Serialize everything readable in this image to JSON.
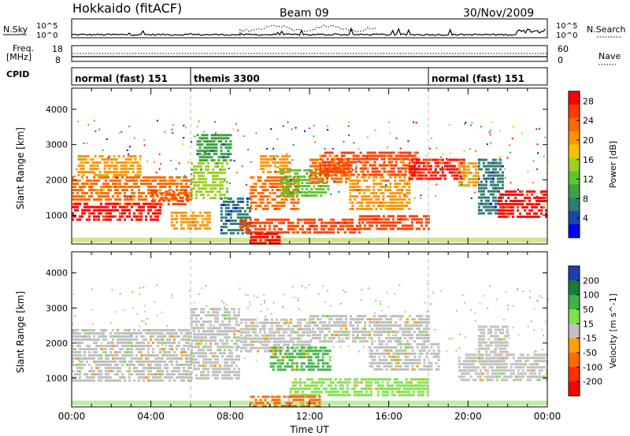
{
  "header": {
    "site": "Hokkaido (fitACF)",
    "beam": "Beam 09",
    "date": "30/Nov/2009"
  },
  "noise_panel": {
    "left_label": "N.Sky",
    "right_label": "N.Search",
    "tick_top": "10^5",
    "tick_bottom": "10^0"
  },
  "freq_panel": {
    "left_label_line1": "Freq.",
    "left_label_line2": "[MHz]",
    "left_tick_top": "18",
    "left_tick_bottom": "8",
    "right_label": "Nave",
    "right_tick_top": "60",
    "right_tick_bottom": "0"
  },
  "cpid": {
    "label": "CPID",
    "segments": [
      {
        "name": "normal (fast) 151",
        "start_hour": 0,
        "end_hour": 6
      },
      {
        "name": "themis 3300",
        "start_hour": 6,
        "end_hour": 18
      },
      {
        "name": "normal (fast) 151",
        "start_hour": 18,
        "end_hour": 24
      }
    ]
  },
  "chart_data": [
    {
      "type": "heatmap",
      "name": "power",
      "ylabel": "Slant Range [km]",
      "xlabel": "",
      "xlim": [
        0,
        24
      ],
      "ylim": [
        180,
        4600
      ],
      "yticks": [
        1000,
        2000,
        3000,
        4000
      ],
      "colorbar": {
        "label": "Power [dB]",
        "ticks": [
          4,
          8,
          12,
          16,
          20,
          24,
          28
        ],
        "range": [
          0,
          30
        ],
        "colors": [
          "#0000ff",
          "#1a47a8",
          "#2e7d6e",
          "#3fa145",
          "#62c234",
          "#9ed022",
          "#ffc000",
          "#ff9400",
          "#ff6a00",
          "#ff3d00",
          "#ff0000"
        ]
      },
      "regions": [
        {
          "h0": 0.0,
          "h1": 4.5,
          "r0": 900,
          "r1": 1350,
          "level": 30
        },
        {
          "h0": 0.0,
          "h1": 6.0,
          "r0": 1400,
          "r1": 2100,
          "level": 24
        },
        {
          "h0": 0.3,
          "h1": 3.5,
          "r0": 2100,
          "r1": 2700,
          "level": 20
        },
        {
          "h0": 4.0,
          "h1": 5.8,
          "r0": 1300,
          "r1": 1700,
          "level": 26
        },
        {
          "h0": 5.0,
          "h1": 7.0,
          "r0": 600,
          "r1": 1100,
          "level": 22
        },
        {
          "h0": 6.0,
          "h1": 7.8,
          "r0": 1500,
          "r1": 2500,
          "level": 14
        },
        {
          "h0": 6.3,
          "h1": 8.0,
          "r0": 2500,
          "r1": 3300,
          "level": 8
        },
        {
          "h0": 7.5,
          "h1": 9.0,
          "r0": 500,
          "r1": 1500,
          "level": 6
        },
        {
          "h0": 8.5,
          "h1": 14.5,
          "r0": 500,
          "r1": 900,
          "level": 28
        },
        {
          "h0": 9.0,
          "h1": 10.5,
          "r0": 200,
          "r1": 500,
          "level": 30
        },
        {
          "h0": 9.0,
          "h1": 11.5,
          "r0": 1200,
          "r1": 2100,
          "level": 24
        },
        {
          "h0": 9.5,
          "h1": 11.0,
          "r0": 2200,
          "r1": 2700,
          "level": 22
        },
        {
          "h0": 10.5,
          "h1": 13.0,
          "r0": 1500,
          "r1": 2300,
          "level": 13
        },
        {
          "h0": 12.0,
          "h1": 14.0,
          "r0": 1900,
          "r1": 2600,
          "level": 24
        },
        {
          "h0": 12.5,
          "h1": 17.5,
          "r0": 2100,
          "r1": 2800,
          "level": 26
        },
        {
          "h0": 14.0,
          "h1": 17.0,
          "r0": 1200,
          "r1": 2100,
          "level": 22
        },
        {
          "h0": 14.5,
          "h1": 18.0,
          "r0": 600,
          "r1": 1000,
          "level": 28
        },
        {
          "h0": 17.0,
          "h1": 19.8,
          "r0": 2000,
          "r1": 2600,
          "level": 29
        },
        {
          "h0": 19.5,
          "h1": 20.5,
          "r0": 1800,
          "r1": 2500,
          "level": 20
        },
        {
          "h0": 20.5,
          "h1": 21.8,
          "r0": 1000,
          "r1": 2600,
          "level": 6
        },
        {
          "h0": 21.5,
          "h1": 24.0,
          "r0": 900,
          "r1": 1700,
          "level": 29
        }
      ]
    },
    {
      "type": "heatmap",
      "name": "velocity",
      "ylabel": "Slant Range [km]",
      "xlabel": "Time UT",
      "xlim": [
        0,
        24
      ],
      "ylim": [
        180,
        4600
      ],
      "yticks": [
        1000,
        2000,
        3000,
        4000
      ],
      "xticks": [
        "00:00",
        "04:00",
        "08:00",
        "12:00",
        "16:00",
        "20:00",
        "00:00"
      ],
      "colorbar": {
        "label": "Velocity [m s^-1]",
        "ticks": [
          200,
          100,
          50,
          15,
          -15,
          -50,
          -100,
          -200
        ],
        "colors": [
          "#1b3fb0",
          "#1a7a3a",
          "#3fb34a",
          "#7ee04a",
          "#c0c0c0",
          "#ffa000",
          "#ff6a00",
          "#ff3000",
          "#ff0000"
        ]
      },
      "regions": [
        {
          "h0": 0.0,
          "h1": 6.0,
          "r0": 900,
          "r1": 2400,
          "level": 0
        },
        {
          "h0": 6.0,
          "h1": 8.5,
          "r0": 1000,
          "r1": 3000,
          "level": 0
        },
        {
          "h0": 8.5,
          "h1": 12.0,
          "r0": 1800,
          "r1": 2700,
          "level": 0
        },
        {
          "h0": 10.0,
          "h1": 13.0,
          "r0": 1200,
          "r1": 1900,
          "level": 40
        },
        {
          "h0": 11.0,
          "h1": 18.0,
          "r0": 500,
          "r1": 1000,
          "level": 35
        },
        {
          "h0": 9.0,
          "h1": 12.5,
          "r0": 200,
          "r1": 500,
          "level": -40
        },
        {
          "h0": 12.0,
          "h1": 18.0,
          "r0": 2000,
          "r1": 2800,
          "level": 0
        },
        {
          "h0": 15.0,
          "h1": 18.5,
          "r0": 1200,
          "r1": 2000,
          "level": 0
        },
        {
          "h0": 19.5,
          "h1": 24.0,
          "r0": 900,
          "r1": 1700,
          "level": 0
        },
        {
          "h0": 20.5,
          "h1": 22.0,
          "r0": 1500,
          "r1": 2500,
          "level": 0
        }
      ]
    }
  ]
}
